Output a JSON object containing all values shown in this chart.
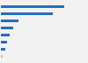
{
  "values": [
    3800,
    3100,
    1050,
    750,
    520,
    350,
    260,
    120
  ],
  "bar_colors": [
    "#2a6ebb",
    "#2a6ebb",
    "#2a6ebb",
    "#2a6ebb",
    "#2a6ebb",
    "#2a6ebb",
    "#2a6ebb",
    "#aac4e0"
  ],
  "background_color": "#f2f2f2",
  "plot_background": "#ffffff",
  "grid_color": "#ffffff",
  "figsize": [
    1.0,
    0.71
  ],
  "dpi": 100,
  "bar_height": 0.45,
  "xlim_max": 4600
}
